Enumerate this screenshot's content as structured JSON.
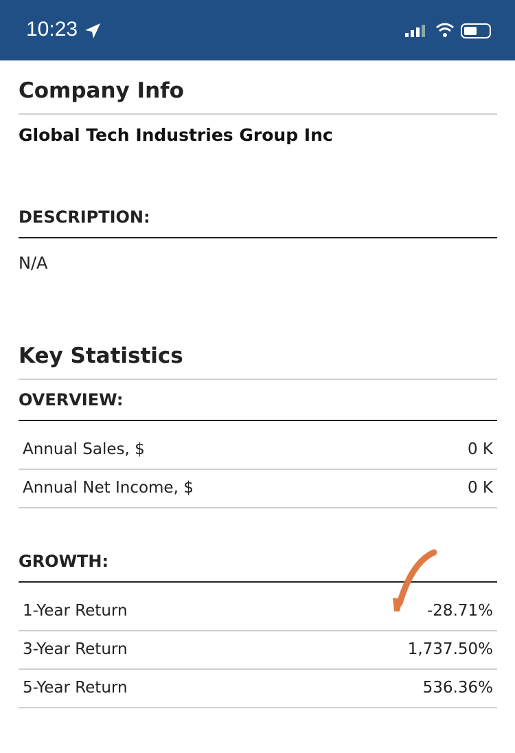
{
  "status_bar": {
    "time": "10:23"
  },
  "company_info": {
    "title": "Company Info",
    "name": "Global Tech Industries Group Inc",
    "description_label": "DESCRIPTION:",
    "description": "N/A"
  },
  "key_statistics": {
    "title": "Key Statistics",
    "overview": {
      "label": "OVERVIEW:",
      "rows": [
        [
          "Annual Sales, $",
          "0 K"
        ],
        [
          "Annual Net Income, $",
          "0 K"
        ]
      ]
    },
    "growth": {
      "label": "GROWTH:",
      "rows": [
        [
          "1-Year Return",
          "-28.71%"
        ],
        [
          "3-Year Return",
          "1,737.50%"
        ],
        [
          "5-Year Return",
          "536.36%"
        ]
      ]
    }
  }
}
